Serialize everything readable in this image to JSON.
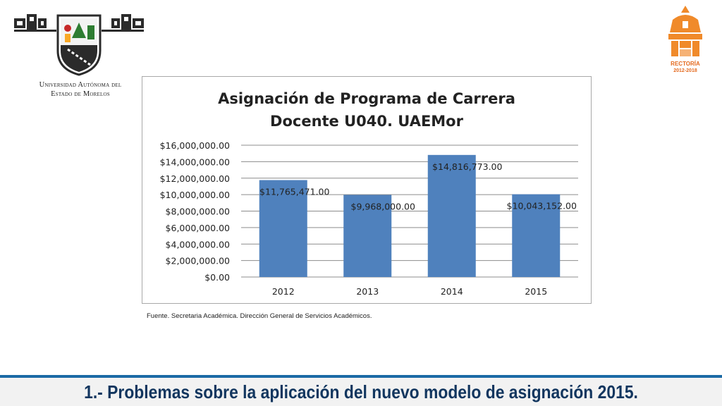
{
  "header": {
    "university_name_line1": "Universidad Autónoma del",
    "university_name_line2": "Estado de Morelos",
    "rectoria_label": "RECTORÍA",
    "rectoria_period": "2012-2018"
  },
  "chart_data": {
    "type": "bar",
    "title_line1": "Asignación de Programa de Carrera",
    "title_line2": "Docente U040. UAEMor",
    "categories": [
      "2012",
      "2013",
      "2014",
      "2015"
    ],
    "values": [
      11765471,
      9968000,
      14816773,
      10043152
    ],
    "data_labels": [
      "$11,765,471.00",
      "$9,968,000.00",
      "$14,816,773.00",
      "$10,043,152.00"
    ],
    "ylim": [
      0,
      16000000
    ],
    "y_ticks": [
      0,
      2000000,
      4000000,
      6000000,
      8000000,
      10000000,
      12000000,
      14000000,
      16000000
    ],
    "y_tick_labels": [
      "$0.00",
      "$2,000,000.00",
      "$4,000,000.00",
      "$6,000,000.00",
      "$8,000,000.00",
      "$10,000,000.00",
      "$12,000,000.00",
      "$14,000,000.00",
      "$16,000,000.00"
    ],
    "grid": true,
    "bar_color": "#4f81bd",
    "legend": "none"
  },
  "source_note": "Fuente. Secretaria Académica. Dirección General de Servicios Académicos.",
  "footer": {
    "title": "1.- Problemas sobre la aplicación del nuevo modelo de asignación 2015."
  }
}
